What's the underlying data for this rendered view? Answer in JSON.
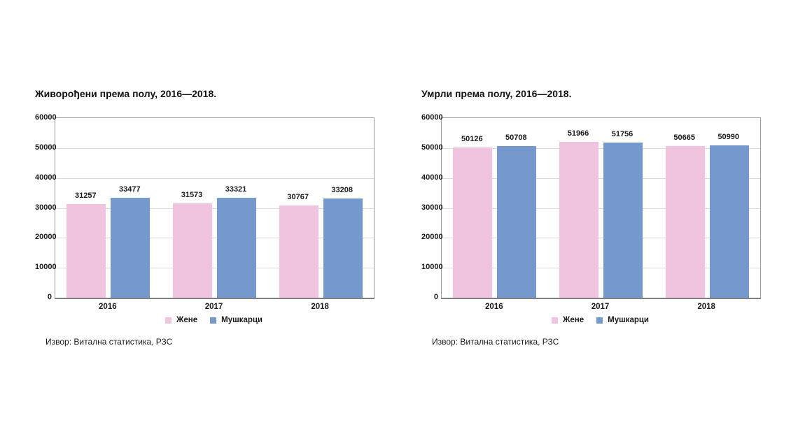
{
  "page": {
    "background": "#ffffff",
    "text_color": "#1a1a1a"
  },
  "colors": {
    "female_pink": "#F0C3DF",
    "male_blue": "#7699CD",
    "gridline": "#d9d9d9",
    "plot_border": "#9c9c9c",
    "axis_line": "#7f7f7f"
  },
  "chart_data": [
    {
      "type": "bar",
      "title": "Живорођени према полу, 2016—2018.",
      "categories": [
        "2016",
        "2017",
        "2018"
      ],
      "series": [
        {
          "name": "Жене",
          "color": "#F0C3DF",
          "values": [
            31257,
            31573,
            30767
          ]
        },
        {
          "name": "Мушкарци",
          "color": "#7699CD",
          "values": [
            33477,
            33321,
            33208
          ]
        }
      ],
      "xlabel": "",
      "ylabel": "",
      "ylim": [
        0,
        60000
      ],
      "ytick_step": 10000,
      "yticks": [
        0,
        10000,
        20000,
        30000,
        40000,
        50000,
        60000
      ],
      "grid": "horizontal",
      "bar_value_labels": true,
      "legend_position": "bottom",
      "source": "Извор: Витална статистика, РЗС"
    },
    {
      "type": "bar",
      "title": "Умрли према полу, 2016—2018.",
      "categories": [
        "2016",
        "2017",
        "2018"
      ],
      "series": [
        {
          "name": "Жене",
          "color": "#F0C3DF",
          "values": [
            50126,
            51966,
            50665
          ]
        },
        {
          "name": "Мушкарци",
          "color": "#7699CD",
          "values": [
            50708,
            51756,
            50990
          ]
        }
      ],
      "xlabel": "",
      "ylabel": "",
      "ylim": [
        0,
        60000
      ],
      "ytick_step": 10000,
      "yticks": [
        0,
        10000,
        20000,
        30000,
        40000,
        50000,
        60000
      ],
      "grid": "horizontal",
      "bar_value_labels": true,
      "legend_position": "bottom",
      "source": "Извор: Витална статистика, РЗС"
    }
  ]
}
